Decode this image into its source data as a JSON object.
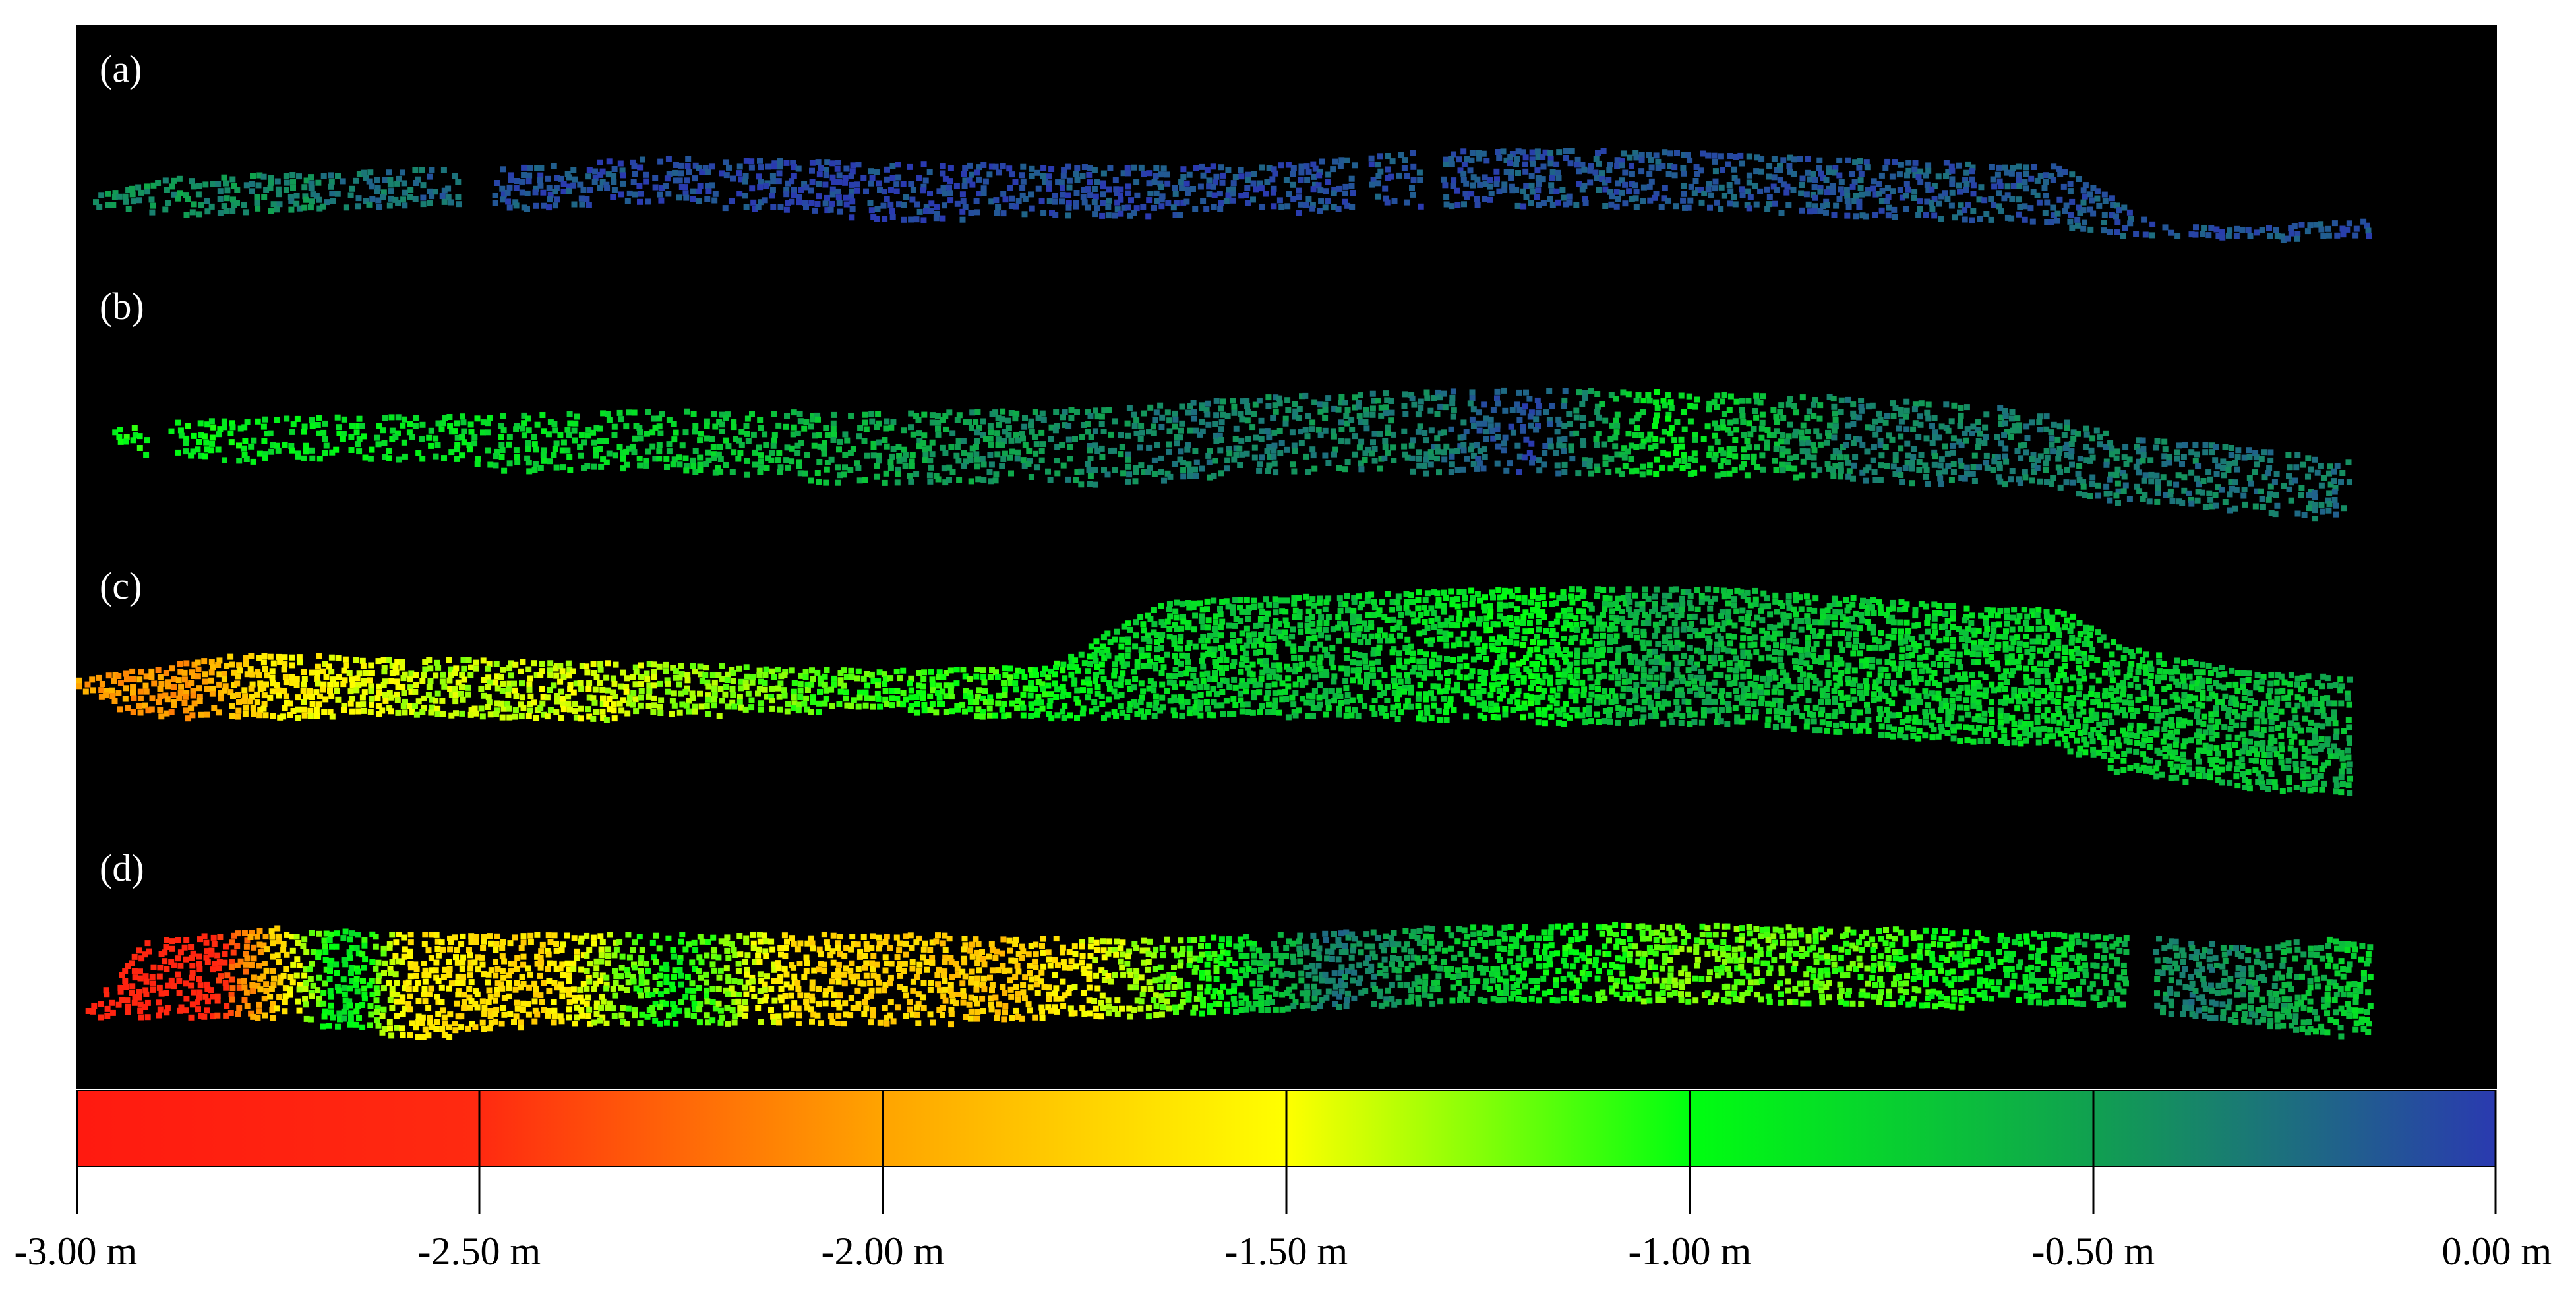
{
  "panels": [
    {
      "label": "(a)"
    },
    {
      "label": "(b)"
    },
    {
      "label": "(c)"
    },
    {
      "label": "(d)"
    }
  ],
  "colorbar": {
    "unit": "m",
    "min": -3.0,
    "max": 0.0,
    "stops": [
      {
        "value": -3.0,
        "color": "#ff1a10"
      },
      {
        "value": -2.5,
        "color": "#ff2a10"
      },
      {
        "value": -2.0,
        "color": "#ffa400"
      },
      {
        "value": -1.5,
        "color": "#ffff00"
      },
      {
        "value": -1.0,
        "color": "#00ff10"
      },
      {
        "value": -0.5,
        "color": "#10a050"
      },
      {
        "value": 0.0,
        "color": "#2a3ab0"
      }
    ],
    "ticks": [
      {
        "value": -3.0,
        "label": "-3.00 m"
      },
      {
        "value": -2.5,
        "label": "-2.50 m"
      },
      {
        "value": -2.0,
        "label": "-2.00 m"
      },
      {
        "value": -1.5,
        "label": "-1.50 m"
      },
      {
        "value": -1.0,
        "label": "-1.00 m"
      },
      {
        "value": -0.5,
        "label": "-0.50 m"
      },
      {
        "value": 0.0,
        "label": "0.00 m"
      }
    ]
  }
}
